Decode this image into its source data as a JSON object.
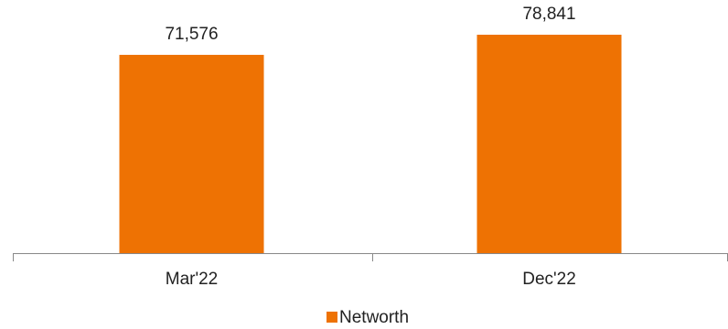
{
  "chart_data": {
    "type": "bar",
    "categories": [
      "Mar'22",
      "Dec'22"
    ],
    "series": [
      {
        "name": "Networth",
        "color": "#ee7203",
        "values": [
          71576,
          78841
        ],
        "value_labels": [
          "71,576",
          "78,841"
        ]
      }
    ]
  }
}
